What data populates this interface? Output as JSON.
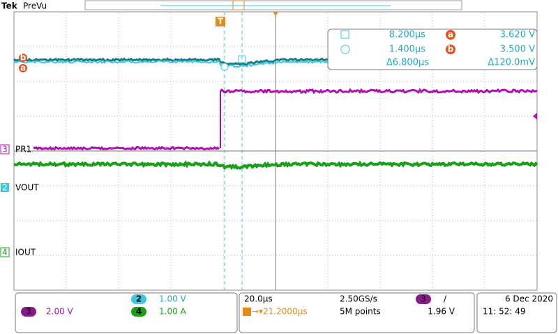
{
  "header": {
    "brand": "Tek",
    "mode": "PreVu"
  },
  "trigger_marker": "T",
  "cursor_readout": {
    "cursor1_time": "8.200µs",
    "cursor2_time": "1.400µs",
    "delta_time": "Δ6.800µs",
    "a_label": "a",
    "a_value": "3.620 V",
    "b_label": "b",
    "b_value": "3.500 V",
    "delta_value": "Δ120.0mV"
  },
  "channels": [
    {
      "number": "3",
      "label": "PR1"
    },
    {
      "number": "2",
      "label": "VOUT"
    },
    {
      "number": "4",
      "label": "IOUT"
    }
  ],
  "status": {
    "ch2_number": "2",
    "ch2_scale": "1.00 V",
    "ch3_number": "3",
    "ch3_scale": "2.00 V",
    "ch4_number": "4",
    "ch4_scale": "1.00 A",
    "timebase": "20.0µs",
    "sample_rate": "2.50GS/s",
    "trigger_position": "→▾21.2000µs",
    "record_length": "5M points",
    "trigger_source": "3",
    "trigger_slope": "/",
    "trigger_level": "1.96 V",
    "date": "6 Dec 2020",
    "time": "11: 52: 49"
  }
}
